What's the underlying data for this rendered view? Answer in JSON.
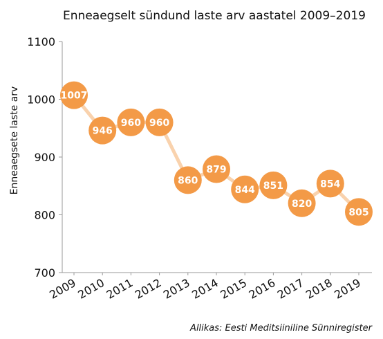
{
  "chart_data": {
    "type": "line",
    "title": "Enneaegselt sündund laste arv aastatel 2009–2019",
    "xlabel": "",
    "ylabel": "Enneaegsete laste arv",
    "categories": [
      "2009",
      "2010",
      "2011",
      "2012",
      "2013",
      "2014",
      "2015",
      "2016",
      "2017",
      "2018",
      "2019"
    ],
    "series": [
      {
        "values": [
          1007,
          946,
          960,
          960,
          860,
          879,
          844,
          851,
          820,
          854,
          805
        ]
      }
    ],
    "data_labels": [
      "1007",
      "946",
      "960",
      "960",
      "860",
      "879",
      "844",
      "851",
      "820",
      "854",
      "805"
    ],
    "ylim": [
      700,
      1100
    ],
    "yticks": [
      "700",
      "800",
      "900",
      "1000",
      "1100"
    ],
    "grid": false,
    "legend": "none",
    "colors": {
      "line": "#f9d2ad",
      "marker": "#f39a47",
      "axis": "#999999"
    }
  },
  "source_note": "Allikas:  Eesti Meditsiiniline Sünniregister"
}
